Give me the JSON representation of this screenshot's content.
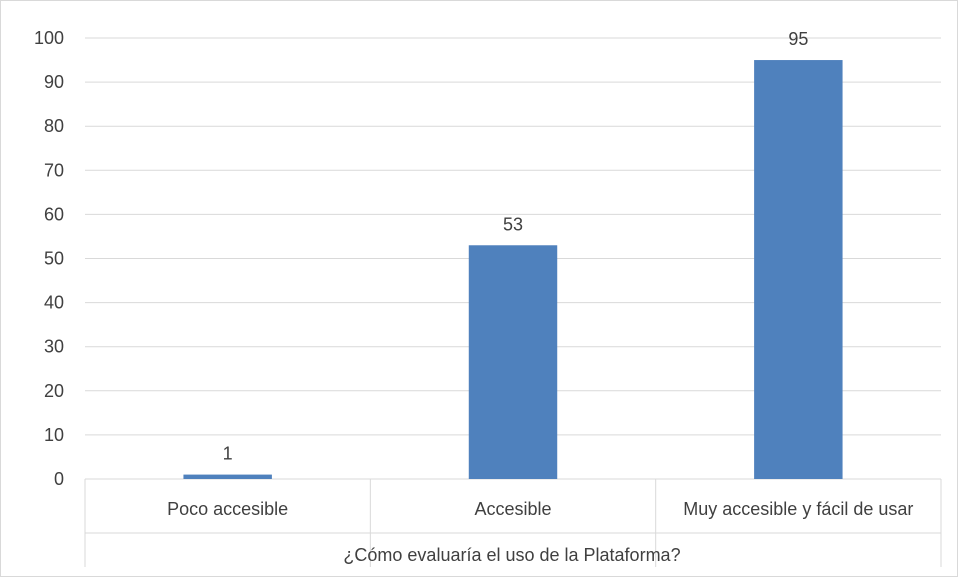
{
  "chart_data": {
    "type": "bar",
    "categories": [
      "Poco accesible",
      "Accesible",
      "Muy accesible y fácil de usar"
    ],
    "values": [
      1,
      53,
      95
    ],
    "data_labels": [
      "1",
      "53",
      "95"
    ],
    "title": "",
    "xlabel": "¿Cómo evaluaría el uso de la Plataforma?",
    "ylabel": "",
    "ylim": [
      0,
      100
    ],
    "y_ticks": [
      "0",
      "10",
      "20",
      "30",
      "40",
      "50",
      "60",
      "70",
      "80",
      "90",
      "100"
    ],
    "grid": true,
    "legend": "none",
    "colors": {
      "bar": "#4F81BD",
      "grid": "#D9D9D9",
      "text": "#404040",
      "border": "#D9D9D9"
    }
  }
}
